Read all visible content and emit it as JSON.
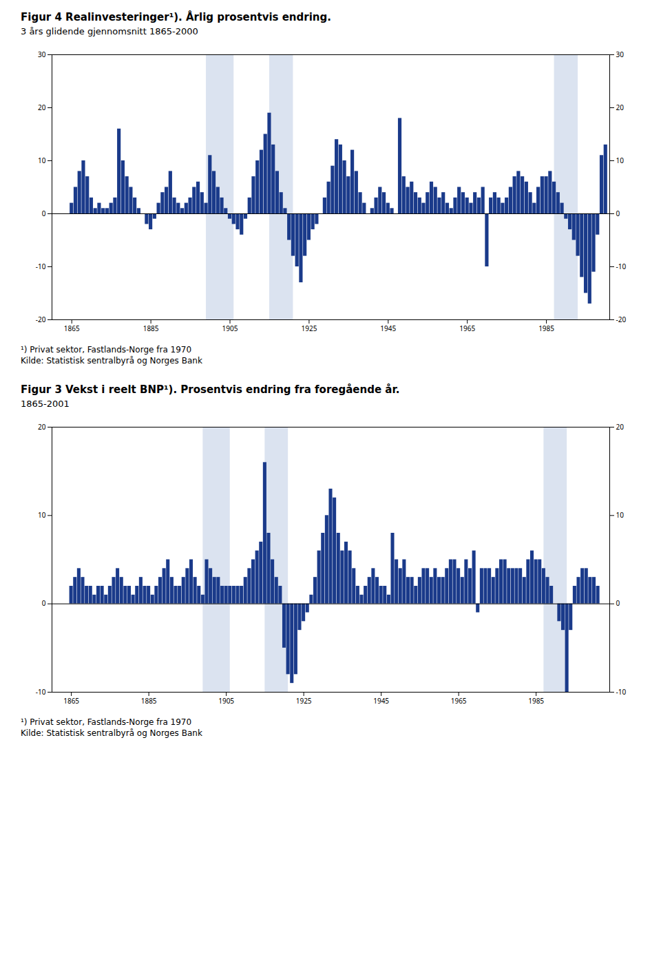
{
  "chart_data": [
    {
      "type": "bar",
      "title": "Figur 4 Realinvesteringer¹). Årlig prosentvis endring.",
      "subtitle": "3 års glidende gjennomsnitt 1865-2000",
      "annotations": [
        "¹) Privat sektor, Fastlands-Norge fra 1970",
        "Kilde: Statistisk sentralbyrå og Norges Bank"
      ],
      "color": "#1a3a8a",
      "shade_color": "#c8d4e8",
      "shade_regions": [
        [
          1899,
          1906
        ],
        [
          1915,
          1921
        ],
        [
          1987,
          1993
        ]
      ],
      "x": [
        1865,
        1866,
        1867,
        1868,
        1869,
        1870,
        1871,
        1872,
        1873,
        1874,
        1875,
        1876,
        1877,
        1878,
        1879,
        1880,
        1881,
        1882,
        1883,
        1884,
        1885,
        1886,
        1887,
        1888,
        1889,
        1890,
        1891,
        1892,
        1893,
        1894,
        1895,
        1896,
        1897,
        1898,
        1899,
        1900,
        1901,
        1902,
        1903,
        1904,
        1905,
        1906,
        1907,
        1908,
        1909,
        1910,
        1911,
        1912,
        1913,
        1914,
        1915,
        1916,
        1917,
        1918,
        1919,
        1920,
        1921,
        1922,
        1923,
        1924,
        1925,
        1926,
        1927,
        1928,
        1929,
        1930,
        1931,
        1932,
        1933,
        1934,
        1935,
        1936,
        1937,
        1938,
        1939,
        1940,
        1941,
        1942,
        1943,
        1944,
        1945,
        1946,
        1947,
        1948,
        1949,
        1950,
        1951,
        1952,
        1953,
        1954,
        1955,
        1956,
        1957,
        1958,
        1959,
        1960,
        1961,
        1962,
        1963,
        1964,
        1965,
        1966,
        1967,
        1968,
        1969,
        1970,
        1971,
        1972,
        1973,
        1974,
        1975,
        1976,
        1977,
        1978,
        1979,
        1980,
        1981,
        1982,
        1983,
        1984,
        1985,
        1986,
        1987,
        1988,
        1989,
        1990,
        1991,
        1992,
        1993,
        1994,
        1995,
        1996,
        1997,
        1998,
        1999,
        2000
      ],
      "values": [
        2,
        5,
        8,
        10,
        7,
        3,
        1,
        2,
        1,
        1,
        2,
        3,
        16,
        10,
        7,
        5,
        3,
        1,
        0,
        -2,
        -3,
        -1,
        2,
        4,
        5,
        8,
        3,
        2,
        1,
        2,
        3,
        5,
        6,
        4,
        2,
        11,
        8,
        5,
        3,
        1,
        -1,
        -2,
        -3,
        -4,
        -1,
        3,
        7,
        10,
        12,
        15,
        19,
        13,
        8,
        4,
        1,
        -5,
        -8,
        -10,
        -13,
        -8,
        -5,
        -3,
        -2,
        0,
        3,
        6,
        9,
        14,
        13,
        10,
        7,
        12,
        8,
        4,
        2,
        0,
        1,
        3,
        5,
        4,
        2,
        1,
        0,
        18,
        7,
        5,
        6,
        4,
        3,
        2,
        4,
        6,
        5,
        3,
        4,
        2,
        1,
        3,
        5,
        4,
        3,
        2,
        4,
        3,
        5,
        -10,
        3,
        4,
        3,
        2,
        3,
        5,
        7,
        8,
        7,
        6,
        4,
        2,
        5,
        7,
        7,
        8,
        6,
        4,
        2,
        -1,
        -3,
        -5,
        -8,
        -12,
        -15,
        -17,
        -11,
        -4,
        11,
        13
      ],
      "xlim": [
        1860,
        2001
      ],
      "xticks": [
        1865,
        1885,
        1905,
        1925,
        1945,
        1965,
        1985
      ],
      "ylim": [
        -20,
        30
      ],
      "yticks": [
        -20,
        -10,
        0,
        10,
        20,
        30
      ],
      "grid": false
    },
    {
      "type": "bar",
      "title": "Figur 3 Vekst i reelt BNP¹). Prosentvis endring fra foregående år.",
      "subtitle": "1865-2001",
      "annotations": [
        "¹) Privat sektor, Fastlands-Norge fra 1970",
        "Kilde: Statistisk sentralbyrå og Norges Bank"
      ],
      "color": "#1a3a8a",
      "shade_color": "#c8d4e8",
      "shade_regions": [
        [
          1899,
          1906
        ],
        [
          1915,
          1921
        ],
        [
          1987,
          1993
        ]
      ],
      "x": [
        1865,
        1866,
        1867,
        1868,
        1869,
        1870,
        1871,
        1872,
        1873,
        1874,
        1875,
        1876,
        1877,
        1878,
        1879,
        1880,
        1881,
        1882,
        1883,
        1884,
        1885,
        1886,
        1887,
        1888,
        1889,
        1890,
        1891,
        1892,
        1893,
        1894,
        1895,
        1896,
        1897,
        1898,
        1899,
        1900,
        1901,
        1902,
        1903,
        1904,
        1905,
        1906,
        1907,
        1908,
        1909,
        1910,
        1911,
        1912,
        1913,
        1914,
        1915,
        1916,
        1917,
        1918,
        1919,
        1920,
        1921,
        1922,
        1923,
        1924,
        1925,
        1926,
        1927,
        1928,
        1929,
        1930,
        1931,
        1932,
        1933,
        1934,
        1935,
        1936,
        1937,
        1938,
        1939,
        1940,
        1941,
        1942,
        1943,
        1944,
        1945,
        1946,
        1947,
        1948,
        1949,
        1950,
        1951,
        1952,
        1953,
        1954,
        1955,
        1956,
        1957,
        1958,
        1959,
        1960,
        1961,
        1962,
        1963,
        1964,
        1965,
        1966,
        1967,
        1968,
        1969,
        1970,
        1971,
        1972,
        1973,
        1974,
        1975,
        1976,
        1977,
        1978,
        1979,
        1980,
        1981,
        1982,
        1983,
        1984,
        1985,
        1986,
        1987,
        1988,
        1989,
        1990,
        1991,
        1992,
        1993,
        1994,
        1995,
        1996,
        1997,
        1998,
        1999,
        2000,
        2001
      ],
      "values": [
        2,
        3,
        4,
        3,
        2,
        2,
        1,
        2,
        2,
        1,
        2,
        3,
        4,
        3,
        2,
        2,
        1,
        2,
        3,
        2,
        2,
        1,
        2,
        3,
        4,
        5,
        3,
        2,
        2,
        3,
        4,
        5,
        3,
        2,
        1,
        5,
        4,
        3,
        3,
        2,
        2,
        2,
        2,
        2,
        2,
        3,
        4,
        5,
        6,
        7,
        16,
        8,
        5,
        3,
        2,
        -5,
        -8,
        -9,
        -8,
        -3,
        -2,
        -1,
        1,
        3,
        6,
        8,
        10,
        13,
        12,
        8,
        6,
        7,
        6,
        4,
        2,
        1,
        2,
        3,
        4,
        3,
        2,
        2,
        1,
        8,
        5,
        4,
        5,
        3,
        3,
        2,
        3,
        4,
        4,
        3,
        4,
        3,
        3,
        4,
        5,
        5,
        4,
        3,
        5,
        4,
        6,
        -1,
        4,
        4,
        4,
        3,
        4,
        5,
        5,
        4,
        4,
        4,
        4,
        3,
        5,
        6,
        5,
        5,
        4,
        3,
        2,
        0,
        -2,
        -3,
        -10,
        -3,
        2,
        3,
        4,
        4,
        3,
        3,
        2
      ],
      "xlim": [
        1860,
        2004
      ],
      "xticks": [
        1865,
        1885,
        1905,
        1925,
        1945,
        1965,
        1985
      ],
      "ylim": [
        -10,
        20
      ],
      "yticks": [
        -10,
        0,
        10,
        20
      ],
      "grid": false
    }
  ]
}
